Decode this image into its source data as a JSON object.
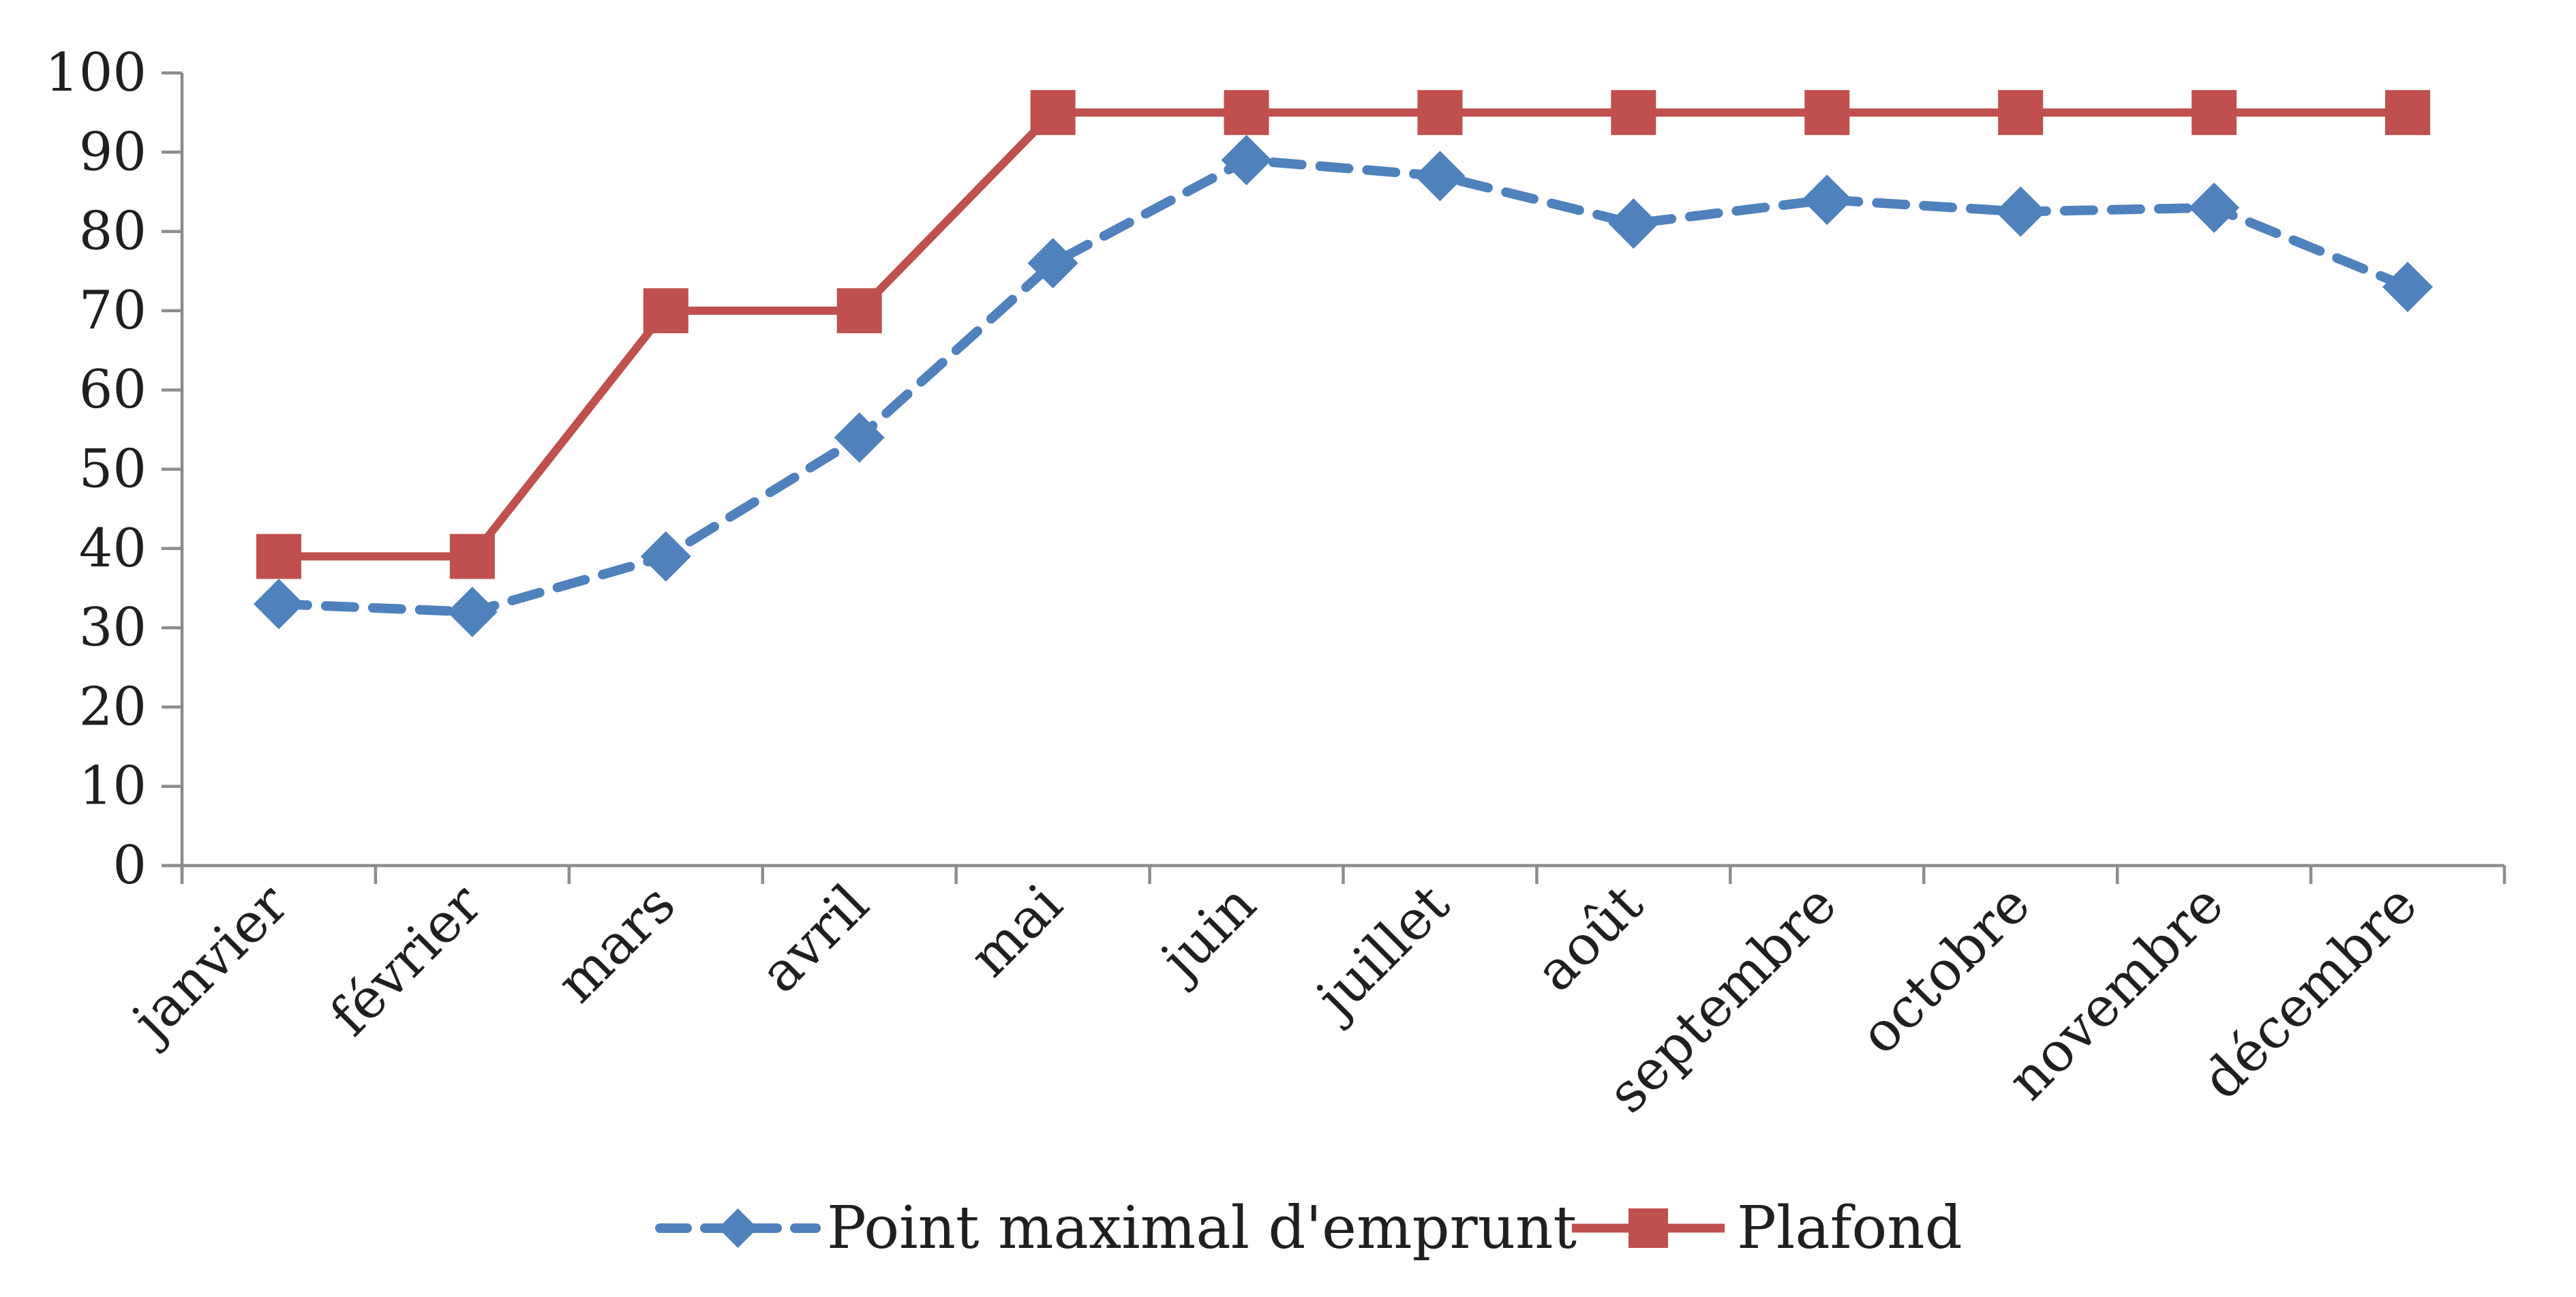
{
  "chart_data": {
    "type": "line",
    "title": "",
    "xlabel": "",
    "ylabel": "",
    "categories": [
      "janvier",
      "février",
      "mars",
      "avril",
      "mai",
      "juin",
      "juillet",
      "août",
      "septembre",
      "octobre",
      "novembre",
      "décembre"
    ],
    "series": [
      {
        "name": "Point maximal d'emprunt",
        "values": [
          33,
          32,
          39,
          54,
          76,
          89,
          87,
          81,
          84,
          82.5,
          83,
          73
        ],
        "color": "#4F81BD",
        "marker": "diamond",
        "line_style": "dashed"
      },
      {
        "name": "Plafond",
        "values": [
          39,
          39,
          70,
          70,
          95,
          95,
          95,
          95,
          95,
          95,
          95,
          95
        ],
        "color": "#C0504D",
        "marker": "square",
        "line_style": "solid"
      }
    ],
    "ylim": [
      0,
      100
    ],
    "y_tick_step": 10,
    "y_tick_labels": [
      "0",
      "10",
      "20",
      "30",
      "40",
      "50",
      "60",
      "70",
      "80",
      "90",
      "100"
    ],
    "grid": false,
    "legend_position": "bottom",
    "axis_color": "#8C8C8C",
    "text_color": "#1F1F1F"
  }
}
